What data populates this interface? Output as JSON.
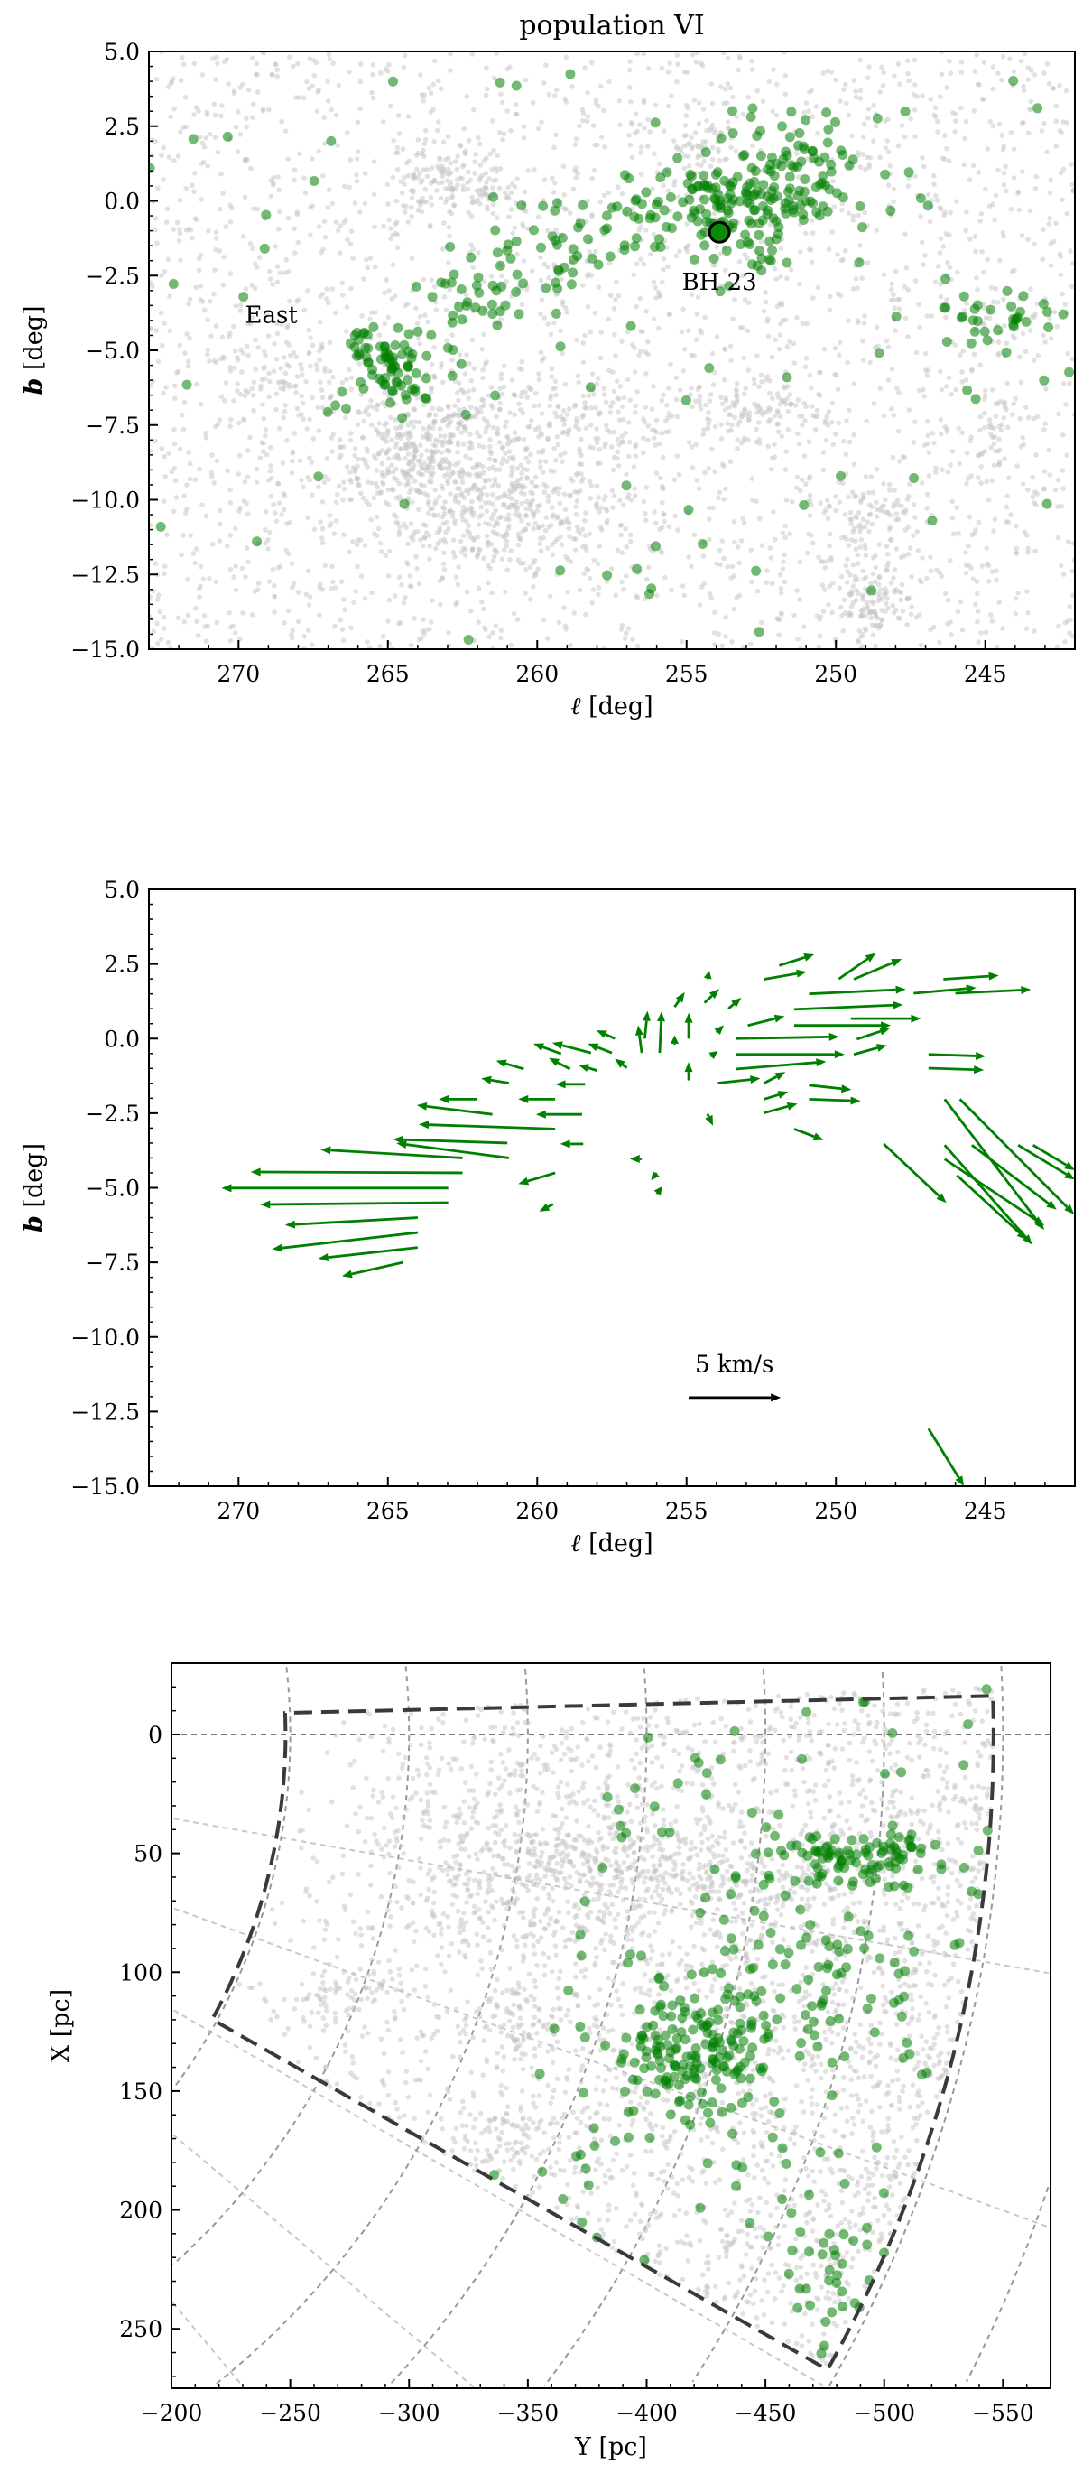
{
  "chart_data": [
    {
      "type": "scatter",
      "title": "population VI",
      "xlabel_var": "ℓ",
      "xlabel_unit": " [deg]",
      "ylabel_var": "b",
      "ylabel_unit": " [deg]",
      "xlim": [
        273,
        242
      ],
      "ylim": [
        -15,
        5
      ],
      "xticks": [
        270,
        265,
        260,
        255,
        250,
        245
      ],
      "xticklabels": [
        "270",
        "265",
        "260",
        "255",
        "250",
        "245"
      ],
      "yticks": [
        5,
        2.5,
        0,
        -2.5,
        -5,
        -7.5,
        -10,
        -12.5,
        -15
      ],
      "yticklabels": [
        "5.0",
        "2.5",
        "0.0",
        "−2.5",
        "−5.0",
        "−7.5",
        "−10.0",
        "−12.5",
        "−15.0"
      ],
      "series": [
        {
          "name": "background",
          "color": "#c4c4c4",
          "uniform_count": 2600,
          "clusters": [
            [
              263,
              0.6,
              1.2,
              0.7,
              160
            ],
            [
              264.5,
              -8.6,
              1.3,
              1.0,
              220
            ],
            [
              262.5,
              -7.6,
              1.4,
              1.0,
              200
            ],
            [
              260,
              -10.1,
              1.5,
              0.9,
              180
            ],
            [
              263,
              -10.5,
              1.5,
              1.0,
              150
            ],
            [
              252.5,
              -6.9,
              1.0,
              0.5,
              90
            ],
            [
              249,
              -11,
              0.8,
              1.2,
              110
            ],
            [
              248.8,
              -13.5,
              0.7,
              0.6,
              90
            ],
            [
              254.3,
              2.0,
              0.5,
              0.5,
              40
            ],
            [
              244.8,
              -7.7,
              0.4,
              0.6,
              40
            ],
            [
              268.5,
              -5.8,
              1.2,
              0.7,
              80
            ],
            [
              258,
              -7.5,
              2,
              0.8,
              120
            ]
          ]
        },
        {
          "name": "population VI",
          "color": "#008000",
          "uniform_count": 70,
          "clusters": [
            [
              265,
              -5.6,
              0.8,
              0.8,
              80
            ],
            [
              262,
              -3.2,
              1.0,
              0.6,
              30
            ],
            [
              259.5,
              -1.8,
              1.2,
              0.7,
              30
            ],
            [
              257.5,
              -0.8,
              1.0,
              0.6,
              25
            ],
            [
              253,
              -0.2,
              1.6,
              1.0,
              170
            ],
            [
              251,
              1.2,
              1.2,
              0.7,
              40
            ],
            [
              245,
              -3.9,
              1.2,
              0.5,
              30
            ]
          ]
        }
      ],
      "annotations": [
        {
          "text": "East",
          "x": 268.9,
          "y": -3.8
        },
        {
          "text": "BH 23",
          "x": 253.9,
          "y": -2.7,
          "marker_x": 253.9,
          "marker_y": -1.05
        }
      ]
    },
    {
      "type": "quiver",
      "xlabel_var": "ℓ",
      "xlabel_unit": " [deg]",
      "ylabel_var": "b",
      "ylabel_unit": " [deg]",
      "xlim": [
        273,
        242
      ],
      "ylim": [
        -15,
        5
      ],
      "xticks": [
        270,
        265,
        260,
        255,
        250,
        245
      ],
      "xticklabels": [
        "270",
        "265",
        "260",
        "255",
        "250",
        "245"
      ],
      "yticks": [
        5,
        2.5,
        0,
        -2.5,
        -5,
        -7.5,
        -10,
        -12.5,
        -15
      ],
      "yticklabels": [
        "5.0",
        "2.5",
        "0.0",
        "−2.5",
        "−5.0",
        "−7.5",
        "−10.0",
        "−12.5",
        "−15.0"
      ],
      "color": "#008000",
      "arrow_fields": [
        "l",
        "b",
        "v_l_kms",
        "v_b_kms"
      ],
      "arrows": [
        [
          262.98,
          -5.01,
          12.3,
          0
        ],
        [
          262.98,
          -5.5,
          10.2,
          -0.1
        ],
        [
          262.5,
          -4.5,
          11.5,
          0.05
        ],
        [
          264.0,
          -6.0,
          7.2,
          -0.4
        ],
        [
          264.0,
          -6.5,
          7.9,
          -0.9
        ],
        [
          264.0,
          -7.0,
          5.4,
          -0.6
        ],
        [
          264.5,
          -7.5,
          3.3,
          -0.75
        ],
        [
          260.95,
          -4.0,
          6.1,
          0.8
        ],
        [
          261.0,
          -3.5,
          6.2,
          0.2
        ],
        [
          262.5,
          -4.0,
          7.7,
          0.45
        ],
        [
          259.4,
          -3.03,
          7.4,
          0.25
        ],
        [
          261.5,
          -2.54,
          4.1,
          0.5
        ],
        [
          262.0,
          -2.03,
          2.1,
          0
        ],
        [
          259.4,
          -2.03,
          2.0,
          0
        ],
        [
          260.45,
          -1.02,
          1.5,
          0.45
        ],
        [
          260.95,
          -1.49,
          1.5,
          0.25
        ],
        [
          259.4,
          -4.5,
          2.0,
          -0.6
        ],
        [
          259.47,
          -5.55,
          0.75,
          -0.4
        ],
        [
          258.46,
          -3.53,
          1.25,
          0
        ],
        [
          258.5,
          -2.54,
          2.5,
          0
        ],
        [
          259.2,
          -0.51,
          1.5,
          0.55
        ],
        [
          258.2,
          -0.48,
          2.1,
          0.55
        ],
        [
          257.5,
          -0.48,
          1.3,
          0.5
        ],
        [
          257.4,
          0.0,
          1.0,
          0.45
        ],
        [
          258.9,
          -1.02,
          1.15,
          0.6
        ],
        [
          258.0,
          -1.07,
          1.0,
          0.3
        ],
        [
          257.0,
          -0.98,
          0.65,
          0.5
        ],
        [
          258.4,
          -1.53,
          1.6,
          0
        ],
        [
          256.5,
          -4.03,
          0.65,
          0
        ],
        [
          256.0,
          -4.5,
          0.3,
          -0.4
        ],
        [
          256.0,
          -5.2,
          -0.3,
          0.4
        ],
        [
          254.3,
          -2.52,
          -0.3,
          -0.65
        ],
        [
          256.5,
          -0.48,
          0.2,
          1.5
        ],
        [
          255.9,
          -0.48,
          -0.1,
          2.25
        ],
        [
          256.4,
          0.0,
          -0.15,
          1.5
        ],
        [
          254.93,
          0,
          0,
          1.4
        ],
        [
          254.93,
          -1.4,
          0,
          1.0
        ],
        [
          255.4,
          -0.2,
          0,
          0.5
        ],
        [
          255.4,
          1.06,
          -0.55,
          0.8
        ],
        [
          254.4,
          1.2,
          -0.8,
          0.75
        ],
        [
          254.3,
          1.99,
          -0.1,
          0.45
        ],
        [
          254.0,
          0.2,
          -0.4,
          0.4
        ],
        [
          254.2,
          -0.6,
          -0.4,
          0.3
        ],
        [
          253.6,
          1.0,
          -0.7,
          0.6
        ],
        [
          251.4,
          0.98,
          -5.9,
          0.25
        ],
        [
          250.9,
          1.5,
          -5.25,
          0.25
        ],
        [
          249.9,
          2.0,
          -2.0,
          1.4
        ],
        [
          249.4,
          1.99,
          -2.6,
          1.1
        ],
        [
          251.9,
          2.45,
          -1.9,
          0.6
        ],
        [
          252.4,
          1.99,
          -2.3,
          0.4
        ],
        [
          253.35,
          0,
          -5.6,
          0.1
        ],
        [
          253.35,
          -0.53,
          -5.9,
          0
        ],
        [
          253.35,
          -1.02,
          -4.9,
          0.4
        ],
        [
          252.95,
          0.44,
          -2.0,
          0.5
        ],
        [
          251.4,
          0.44,
          -5.25,
          0
        ],
        [
          249.5,
          0.67,
          -3.8,
          0
        ],
        [
          249.3,
          -0.02,
          -1.8,
          0.6
        ],
        [
          249.4,
          -0.53,
          -1.8,
          0.5
        ],
        [
          247.4,
          1.52,
          -3.4,
          0.3
        ],
        [
          246.4,
          1.99,
          -3.0,
          0.2
        ],
        [
          246.0,
          1.52,
          -4.1,
          0.2
        ],
        [
          246.9,
          -0.53,
          -3.1,
          -0.1
        ],
        [
          246.9,
          -0.99,
          -3.0,
          -0.1
        ],
        [
          250.9,
          -1.56,
          -2.3,
          -0.25
        ],
        [
          250.9,
          -2.03,
          -2.8,
          -0.1
        ],
        [
          252.4,
          -2.03,
          -1.3,
          0.4
        ],
        [
          252.4,
          -2.49,
          -1.8,
          0.5
        ],
        [
          251.4,
          -3.03,
          -1.6,
          -0.6
        ],
        [
          252.4,
          -1.49,
          -1.15,
          0.6
        ],
        [
          253.95,
          -1.49,
          -2.3,
          0.25
        ],
        [
          248.4,
          -3.53,
          -3.4,
          -3.2
        ],
        [
          246.36,
          -2.03,
          -5.4,
          -7.1
        ],
        [
          245.85,
          -2.03,
          -6.2,
          -6.25
        ],
        [
          246.36,
          -3.57,
          -4.75,
          -5.4
        ],
        [
          246.36,
          -4.04,
          -5.4,
          -3.6
        ],
        [
          245.95,
          -4.58,
          -3.8,
          -3.5
        ],
        [
          243.9,
          -3.57,
          -3.3,
          -2.0
        ],
        [
          243.4,
          -3.57,
          -2.5,
          -1.5
        ],
        [
          245.45,
          -3.57,
          -4.6,
          -3.5
        ],
        [
          246.9,
          -13.07,
          -2.0,
          -3.25
        ]
      ],
      "key": {
        "text": "5 km/s",
        "value_kms": 5,
        "x": 254.93,
        "y": -12.03,
        "label_x": 253.4,
        "label_y": -10.9
      }
    },
    {
      "type": "scatter",
      "xlabel": "Y [pc]",
      "ylabel": "X [pc]",
      "xlim": [
        -200,
        -570
      ],
      "ylim": [
        275,
        -30
      ],
      "xticks": [
        -200,
        -250,
        -300,
        -350,
        -400,
        -450,
        -500,
        -550
      ],
      "xticklabels": [
        "−200",
        "−250",
        "−300",
        "−350",
        "−400",
        "−450",
        "−500",
        "−550"
      ],
      "yticks": [
        0,
        50,
        100,
        150,
        200,
        250
      ],
      "yticklabels": [
        "0",
        "50",
        "100",
        "150",
        "200",
        "250"
      ],
      "grid": {
        "distance_arcs_pc": [
          250,
          300,
          350,
          400,
          450,
          500,
          550,
          600
        ],
        "longitude_offsets_deg": [
          0,
          10,
          20,
          30,
          40,
          50
        ]
      },
      "boundary": {
        "distance_pc": [
          248,
          546
        ],
        "angle_deg": [
          -2.1,
          29.3
        ]
      },
      "series": [
        {
          "name": "background",
          "color": "#c4c4c4",
          "uniform_count": 2600,
          "clusters": [
            [
              -370,
              52,
              35,
              10,
              260
            ],
            [
              -440,
              62,
              30,
              10,
              160
            ],
            [
              -355,
              75,
              40,
              14,
              200
            ],
            [
              -270,
              110,
              18,
              7,
              90
            ],
            [
              -345,
              118,
              12,
              8,
              70
            ],
            [
              -345,
              170,
              12,
              8,
              60
            ],
            [
              -330,
              30,
              40,
              20,
              200
            ]
          ]
        },
        {
          "name": "population VI",
          "color": "#008000",
          "uniform_count": 110,
          "clusters": [
            [
              -490,
              52,
              22,
              6,
              90
            ],
            [
              -420,
              135,
              20,
              14,
              150
            ],
            [
              -460,
              100,
              30,
              30,
              100
            ],
            [
              -480,
              220,
              15,
              15,
              35
            ]
          ]
        }
      ]
    }
  ]
}
